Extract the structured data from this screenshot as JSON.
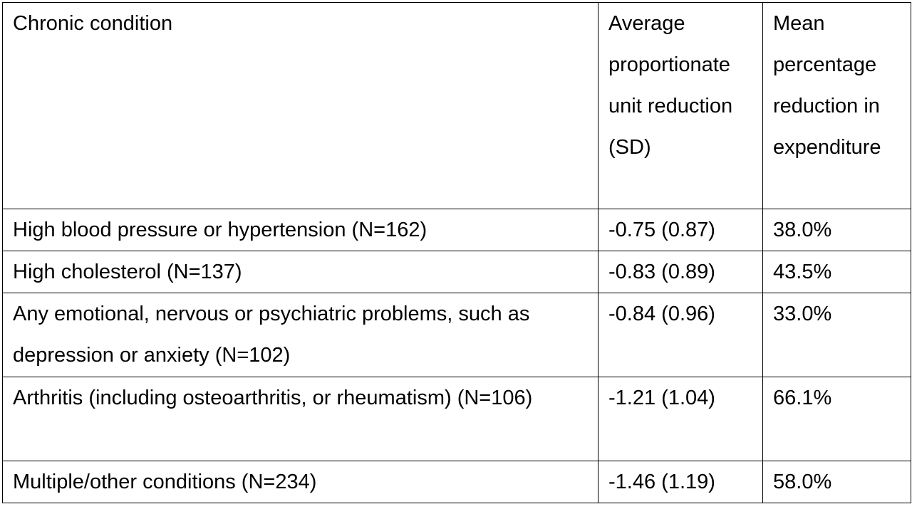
{
  "table": {
    "headers": [
      "Chronic condition",
      "Average proportionate unit reduction (SD)",
      "Mean percentage reduction in expenditure"
    ],
    "rows": [
      [
        "High blood pressure or hypertension (N=162)",
        "-0.75 (0.87)",
        "38.0%"
      ],
      [
        "High cholesterol (N=137)",
        "-0.83 (0.89)",
        "43.5%"
      ],
      [
        "Any emotional, nervous or psychiatric problems, such as depression or anxiety (N=102)",
        "-0.84 (0.96)",
        "33.0%"
      ],
      [
        "Arthritis (including osteoarthritis, or rheumatism) (N=106)",
        "-1.21 (1.04)",
        "66.1%"
      ],
      [
        "Multiple/other conditions (N=234)",
        "-1.46 (1.19)",
        "58.0%"
      ]
    ]
  }
}
